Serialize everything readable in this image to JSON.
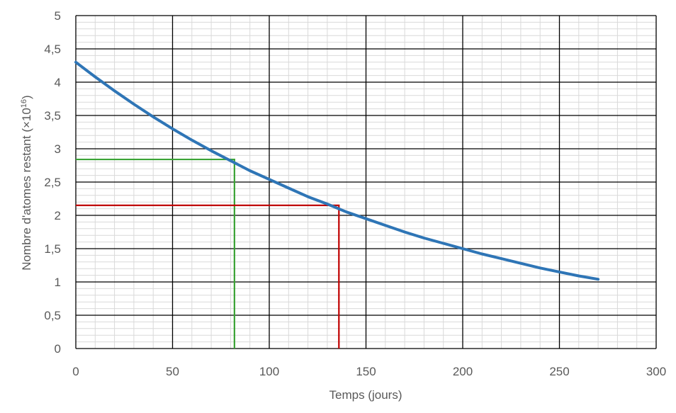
{
  "chart_data": {
    "type": "line",
    "title": "",
    "xlabel": "Temps (jours)",
    "ylabel_main": "Nombre d'atomes restant (×10",
    "ylabel_sup": "16",
    "ylabel_end": ")",
    "xlim": [
      0,
      300
    ],
    "ylim": [
      0,
      5
    ],
    "x_ticks": [
      0,
      50,
      100,
      150,
      200,
      250,
      300
    ],
    "x_tick_labels": [
      "0",
      "50",
      "100",
      "150",
      "200",
      "250",
      "300"
    ],
    "y_ticks": [
      0,
      0.5,
      1,
      1.5,
      2,
      2.5,
      3,
      3.5,
      4,
      4.5,
      5
    ],
    "y_tick_labels": [
      "0",
      "0,5",
      "1",
      "1,5",
      "2",
      "2,5",
      "3",
      "3,5",
      "4",
      "4,5",
      "5"
    ],
    "grid": {
      "major_x_every": 50,
      "minor_x_every": 10,
      "major_y_every": 0.5,
      "minor_y_every": 0.1,
      "major_color": "#000000",
      "minor_color": "#d9d9d9"
    },
    "series": [
      {
        "color": "#2e75b6",
        "x": [
          0,
          10,
          20,
          30,
          40,
          50,
          60,
          70,
          80,
          90,
          100,
          110,
          120,
          130,
          140,
          150,
          160,
          170,
          180,
          190,
          200,
          210,
          220,
          230,
          240,
          250,
          260,
          270
        ],
        "y": [
          4.3,
          4.08,
          3.87,
          3.67,
          3.48,
          3.3,
          3.13,
          2.97,
          2.82,
          2.67,
          2.54,
          2.41,
          2.28,
          2.17,
          2.05,
          1.95,
          1.85,
          1.75,
          1.66,
          1.58,
          1.5,
          1.42,
          1.35,
          1.28,
          1.21,
          1.15,
          1.09,
          1.04
        ]
      }
    ],
    "annotations": [
      {
        "kind": "guide",
        "color": "#3aa335",
        "x": 82,
        "y": 2.84
      },
      {
        "kind": "guide",
        "color": "#c00000",
        "x": 136,
        "y": 2.15
      }
    ]
  }
}
